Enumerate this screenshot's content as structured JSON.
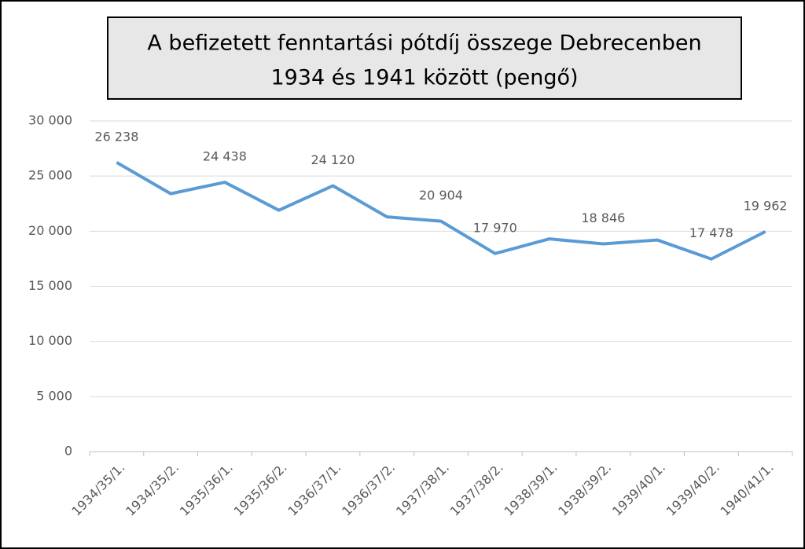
{
  "chart_data": {
    "type": "line",
    "title": [
      "A befizetett fenntartási pótdíj összege Debrecenben",
      "1934 és 1941 között (pengő)"
    ],
    "categories": [
      "1934/35/1.",
      "1934/35/2.",
      "1935/36/1.",
      "1935/36/2.",
      "1936/37/1.",
      "1936/37/2.",
      "1937/38/1.",
      "1937/38/2.",
      "1938/39/1.",
      "1938/39/2.",
      "1939/40/1.",
      "1939/40/2.",
      "1940/41/1."
    ],
    "values": [
      26238,
      23400,
      24438,
      21900,
      24120,
      21300,
      20904,
      17970,
      19300,
      18846,
      19200,
      17478,
      19962
    ],
    "value_labels": [
      "26 238",
      null,
      "24 438",
      null,
      "24 120",
      null,
      "20 904",
      "17 970",
      null,
      "18 846",
      null,
      "17 478",
      "19 962"
    ],
    "color": "#5b9bd5",
    "ylim": [
      0,
      30000
    ],
    "yticks": [
      0,
      {
        "value": 5000,
        "label": "5 000"
      },
      {
        "value": 10000,
        "label": "10 000"
      },
      {
        "value": 15000,
        "label": "15 000"
      },
      {
        "value": 20000,
        "label": "20 000"
      },
      {
        "value": 25000,
        "label": "25 000"
      },
      {
        "value": 30000,
        "label": "30 000"
      }
    ],
    "grid": true
  }
}
